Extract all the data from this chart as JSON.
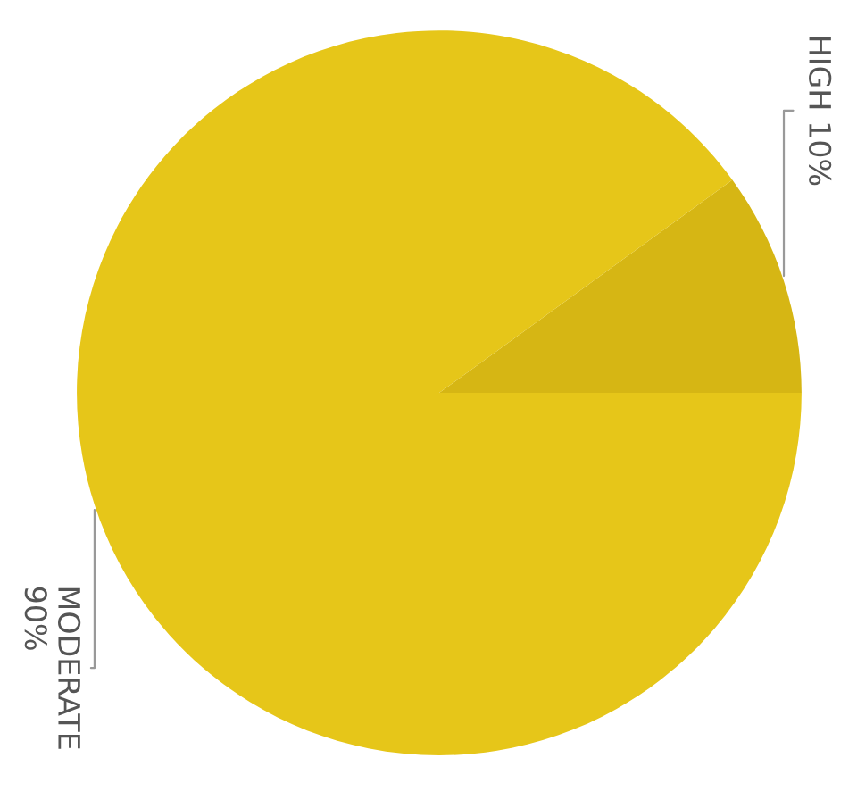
{
  "chart_data": {
    "type": "pie",
    "categories": [
      "HIGH",
      "MODERATE"
    ],
    "values": [
      10,
      90
    ],
    "value_labels": [
      "10%",
      "90%"
    ],
    "colors": [
      "#d6b614",
      "#e6c619"
    ]
  }
}
